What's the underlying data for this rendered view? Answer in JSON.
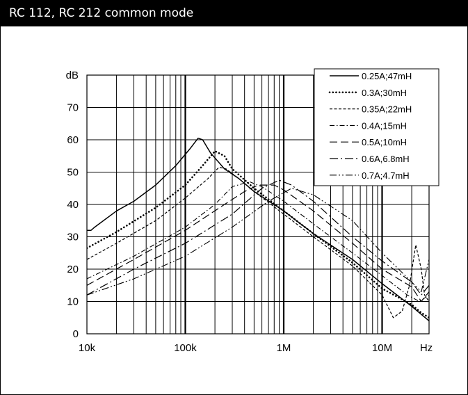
{
  "header": {
    "title": "RC 112, RC 212 common mode"
  },
  "chart_data": {
    "type": "line",
    "title": "RC 112, RC 212 common mode",
    "x_unit": "Hz",
    "y_unit": "dB",
    "x_scale": "log",
    "xlim": [
      10000,
      30000000
    ],
    "ylim": [
      0,
      80
    ],
    "x_ticks": [
      {
        "value": 10000,
        "label": "10k"
      },
      {
        "value": 100000,
        "label": "100k"
      },
      {
        "value": 1000000,
        "label": "1M"
      },
      {
        "value": 10000000,
        "label": "10M"
      }
    ],
    "y_ticks": [
      {
        "value": 0,
        "label": "0"
      },
      {
        "value": 10,
        "label": "10"
      },
      {
        "value": 20,
        "label": "20"
      },
      {
        "value": 30,
        "label": "30"
      },
      {
        "value": 40,
        "label": "40"
      },
      {
        "value": 50,
        "label": "50"
      },
      {
        "value": 60,
        "label": "60"
      },
      {
        "value": 70,
        "label": "70"
      }
    ],
    "grid": true,
    "legend_position": "top-right",
    "series": [
      {
        "name": "0.25A;47mH",
        "dash": "solid",
        "width": 1.5,
        "points": [
          [
            10000,
            32
          ],
          [
            11000,
            32
          ],
          [
            12000,
            33
          ],
          [
            20000,
            38
          ],
          [
            30000,
            41
          ],
          [
            50000,
            46
          ],
          [
            80000,
            52
          ],
          [
            110000,
            57
          ],
          [
            135000,
            60.5
          ],
          [
            150000,
            60
          ],
          [
            180000,
            56
          ],
          [
            250000,
            51
          ],
          [
            350000,
            48
          ],
          [
            500000,
            44
          ],
          [
            1000000,
            38
          ],
          [
            2000000,
            31
          ],
          [
            5000000,
            23
          ],
          [
            10000000,
            15.5
          ],
          [
            20000000,
            8.5
          ],
          [
            25000000,
            6
          ],
          [
            30000000,
            4
          ]
        ]
      },
      {
        "name": "0.3A;30mH",
        "dash": "dotted",
        "width": 2.6,
        "points": [
          [
            10000,
            26.5
          ],
          [
            20000,
            31.5
          ],
          [
            50000,
            39
          ],
          [
            100000,
            46
          ],
          [
            150000,
            52
          ],
          [
            200000,
            56.5
          ],
          [
            250000,
            55
          ],
          [
            300000,
            51
          ],
          [
            500000,
            45
          ],
          [
            1000000,
            38
          ],
          [
            2000000,
            31
          ],
          [
            5000000,
            22
          ],
          [
            10000000,
            14
          ],
          [
            20000000,
            9
          ],
          [
            25000000,
            6.5
          ],
          [
            30000000,
            5
          ]
        ]
      },
      {
        "name": "0.35A;22mH",
        "dash": "dashed",
        "width": 1.2,
        "points": [
          [
            10000,
            23
          ],
          [
            20000,
            28
          ],
          [
            50000,
            35
          ],
          [
            100000,
            42
          ],
          [
            170000,
            48
          ],
          [
            220000,
            51.5
          ],
          [
            260000,
            51
          ],
          [
            350000,
            48
          ],
          [
            500000,
            44
          ],
          [
            1000000,
            37
          ],
          [
            2000000,
            30
          ],
          [
            5000000,
            21
          ],
          [
            10000000,
            12
          ],
          [
            13000000,
            5
          ],
          [
            16000000,
            7
          ],
          [
            19000000,
            15
          ],
          [
            22000000,
            27.5
          ],
          [
            25000000,
            20
          ],
          [
            27000000,
            12
          ],
          [
            30000000,
            10
          ]
        ]
      },
      {
        "name": "0.4A;15mH",
        "dash": "dashdot",
        "width": 1.1,
        "points": [
          [
            10000,
            17
          ],
          [
            30000,
            24
          ],
          [
            100000,
            33
          ],
          [
            200000,
            40
          ],
          [
            300000,
            45.5
          ],
          [
            450000,
            47
          ],
          [
            600000,
            45.5
          ],
          [
            1000000,
            41
          ],
          [
            2000000,
            34
          ],
          [
            5000000,
            25
          ],
          [
            10000000,
            18
          ],
          [
            18000000,
            12
          ],
          [
            24000000,
            10
          ],
          [
            30000000,
            12
          ]
        ]
      },
      {
        "name": "0.5A;10mH",
        "dash": "longdash",
        "width": 1.2,
        "points": [
          [
            10000,
            15
          ],
          [
            30000,
            23
          ],
          [
            100000,
            32
          ],
          [
            250000,
            40
          ],
          [
            400000,
            44
          ],
          [
            550000,
            46
          ],
          [
            800000,
            46
          ],
          [
            1000000,
            44.5
          ],
          [
            2000000,
            38
          ],
          [
            5000000,
            28
          ],
          [
            10000000,
            20
          ],
          [
            20000000,
            14.5
          ],
          [
            25000000,
            10
          ],
          [
            30000000,
            13
          ]
        ]
      },
      {
        "name": "0.6A,6.8mH",
        "dash": "longdashdot",
        "width": 1.2,
        "points": [
          [
            10000,
            12
          ],
          [
            30000,
            20
          ],
          [
            100000,
            28
          ],
          [
            300000,
            37
          ],
          [
            600000,
            45
          ],
          [
            900000,
            47.5
          ],
          [
            1200000,
            46
          ],
          [
            2000000,
            41
          ],
          [
            5000000,
            30
          ],
          [
            10000000,
            22.5
          ],
          [
            20000000,
            16
          ],
          [
            25000000,
            12
          ],
          [
            30000000,
            15
          ]
        ]
      },
      {
        "name": "0.7A;4.7mH",
        "dash": "longdashdotdot",
        "width": 1.1,
        "points": [
          [
            10000,
            12
          ],
          [
            30000,
            17
          ],
          [
            100000,
            24
          ],
          [
            300000,
            33
          ],
          [
            700000,
            41
          ],
          [
            1200000,
            45
          ],
          [
            2000000,
            43
          ],
          [
            5000000,
            35
          ],
          [
            10000000,
            25
          ],
          [
            20000000,
            16
          ],
          [
            25000000,
            13
          ],
          [
            30000000,
            23
          ]
        ]
      }
    ]
  }
}
